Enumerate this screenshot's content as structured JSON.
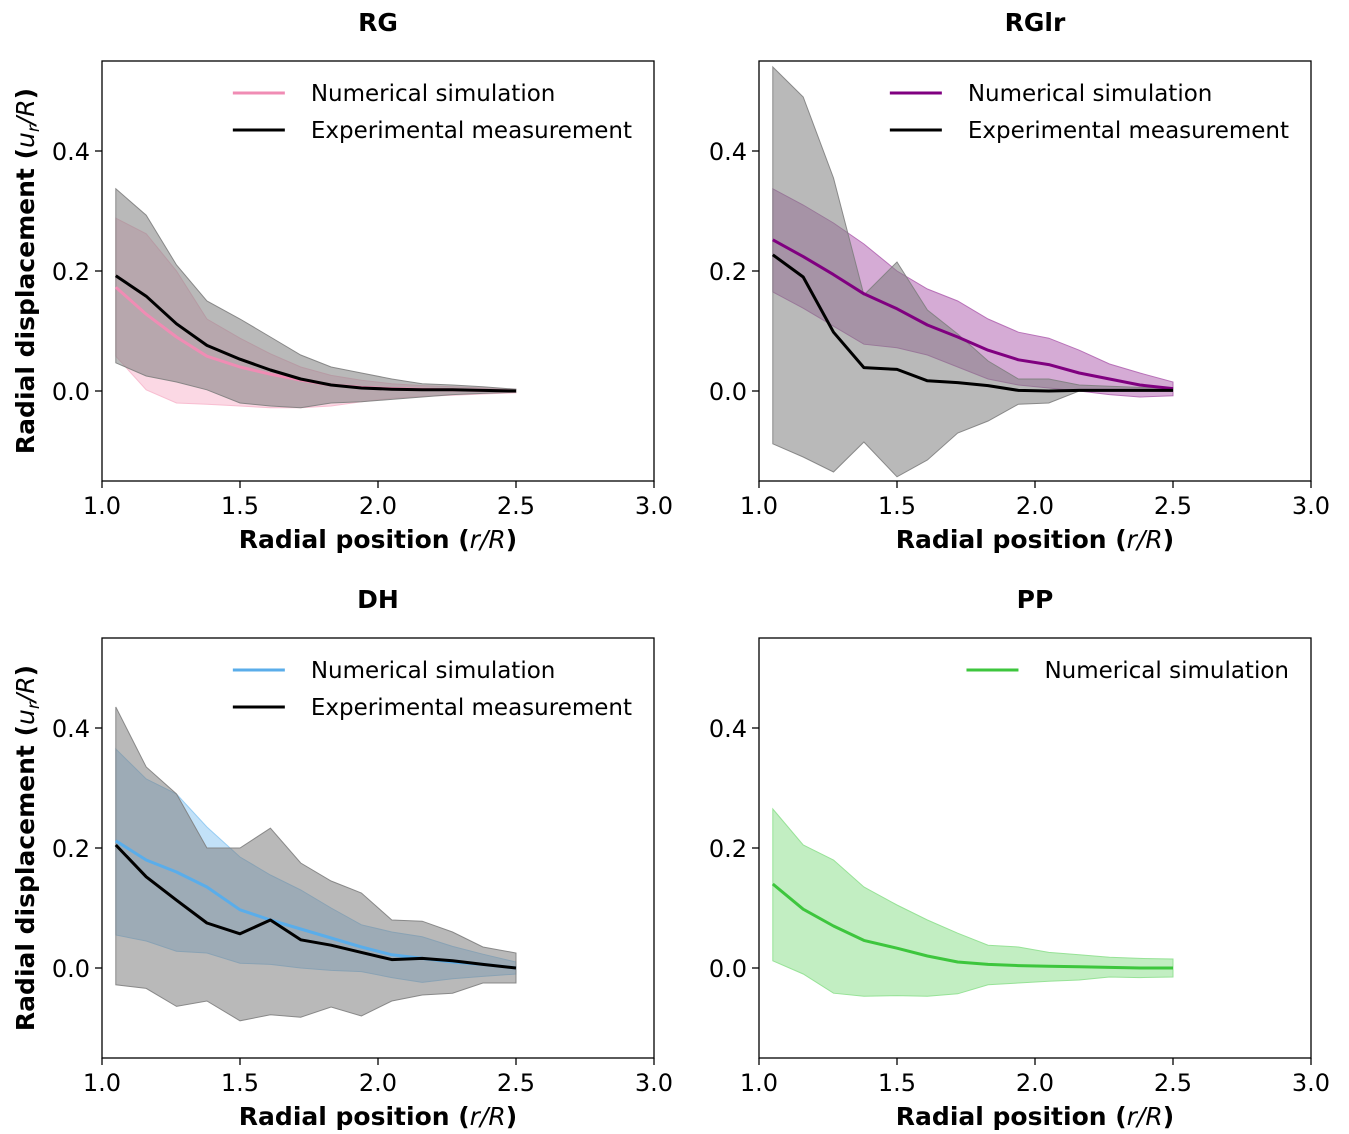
{
  "figure": {
    "x_label_prefix": "Radial position (",
    "x_label_var": "r/R",
    "x_label_suffix": ")",
    "y_label_prefix": "Radial displacement (",
    "y_label_var": "u",
    "y_label_sub": "r",
    "y_label_rest": "/R",
    "y_label_suffix": ")"
  },
  "chart_data": [
    {
      "type": "line",
      "title": "RG",
      "xlim": [
        1.0,
        3.0
      ],
      "ylim": [
        -0.15,
        0.55
      ],
      "x_ticks": [
        "1.0",
        "1.5",
        "2.0",
        "2.5",
        "3.0"
      ],
      "y_ticks": [
        "0.0",
        "0.2",
        "0.4"
      ],
      "legend_position": "top-right",
      "x": [
        1.05,
        1.16,
        1.27,
        1.38,
        1.5,
        1.61,
        1.72,
        1.83,
        1.94,
        2.05,
        2.16,
        2.27,
        2.38,
        2.5
      ],
      "series": [
        {
          "name": "Numerical simulation",
          "color": "#f08cb4",
          "band_color": "#f7b8cd",
          "values": [
            0.173,
            0.128,
            0.09,
            0.058,
            0.04,
            0.028,
            0.018,
            0.01,
            0.006,
            0.004,
            0.003,
            0.002,
            0.001,
            0.0
          ],
          "upper": [
            0.288,
            0.262,
            0.2,
            0.12,
            0.088,
            0.062,
            0.04,
            0.026,
            0.018,
            0.012,
            0.009,
            0.007,
            0.005,
            0.003
          ],
          "lower": [
            0.058,
            0.002,
            -0.02,
            -0.022,
            -0.025,
            -0.028,
            -0.028,
            -0.025,
            -0.018,
            -0.012,
            -0.009,
            -0.007,
            -0.005,
            -0.003
          ]
        },
        {
          "name": "Experimental measurement",
          "color": "#000000",
          "band_color": "#808080",
          "values": [
            0.192,
            0.158,
            0.112,
            0.076,
            0.053,
            0.035,
            0.02,
            0.01,
            0.005,
            0.003,
            0.002,
            0.002,
            0.001,
            0.0
          ],
          "upper": [
            0.337,
            0.293,
            0.21,
            0.15,
            0.12,
            0.09,
            0.06,
            0.04,
            0.03,
            0.02,
            0.012,
            0.01,
            0.007,
            0.003
          ],
          "lower": [
            0.047,
            0.025,
            0.015,
            0.002,
            -0.02,
            -0.025,
            -0.028,
            -0.02,
            -0.018,
            -0.014,
            -0.01,
            -0.006,
            -0.004,
            -0.002
          ]
        }
      ]
    },
    {
      "type": "line",
      "title": "RGlr",
      "xlim": [
        1.0,
        3.0
      ],
      "ylim": [
        -0.15,
        0.55
      ],
      "x_ticks": [
        "1.0",
        "1.5",
        "2.0",
        "2.5",
        "3.0"
      ],
      "y_ticks": [
        "0.0",
        "0.2",
        "0.4"
      ],
      "legend_position": "top-right",
      "x": [
        1.05,
        1.16,
        1.27,
        1.38,
        1.5,
        1.61,
        1.72,
        1.83,
        1.94,
        2.05,
        2.16,
        2.27,
        2.38,
        2.5
      ],
      "series": [
        {
          "name": "Numerical simulation",
          "color": "#800080",
          "band_color": "#b266b2",
          "values": [
            0.252,
            0.224,
            0.194,
            0.162,
            0.137,
            0.11,
            0.09,
            0.068,
            0.052,
            0.044,
            0.03,
            0.02,
            0.01,
            0.004
          ],
          "upper": [
            0.337,
            0.31,
            0.28,
            0.245,
            0.2,
            0.17,
            0.15,
            0.12,
            0.098,
            0.088,
            0.068,
            0.045,
            0.03,
            0.015
          ],
          "lower": [
            0.165,
            0.138,
            0.108,
            0.078,
            0.072,
            0.06,
            0.04,
            0.02,
            0.01,
            0.005,
            0.0,
            -0.006,
            -0.01,
            -0.008
          ]
        },
        {
          "name": "Experimental measurement",
          "color": "#000000",
          "band_color": "#808080",
          "values": [
            0.227,
            0.19,
            0.098,
            0.039,
            0.036,
            0.017,
            0.014,
            0.009,
            0.001,
            0.0,
            0.001,
            0.001,
            0.001,
            0.001
          ],
          "upper": [
            0.54,
            0.49,
            0.355,
            0.16,
            0.215,
            0.135,
            0.095,
            0.05,
            0.02,
            0.02,
            0.01,
            0.008,
            0.006,
            0.005
          ],
          "lower": [
            -0.088,
            -0.11,
            -0.135,
            -0.085,
            -0.143,
            -0.115,
            -0.07,
            -0.05,
            -0.022,
            -0.02,
            0.0,
            0.0,
            0.0,
            0.0
          ]
        }
      ]
    },
    {
      "type": "line",
      "title": "DH",
      "xlim": [
        1.0,
        3.0
      ],
      "ylim": [
        -0.15,
        0.55
      ],
      "x_ticks": [
        "1.0",
        "1.5",
        "2.0",
        "2.5",
        "3.0"
      ],
      "y_ticks": [
        "0.0",
        "0.2",
        "0.4"
      ],
      "legend_position": "top-right",
      "x": [
        1.05,
        1.16,
        1.27,
        1.38,
        1.5,
        1.61,
        1.72,
        1.83,
        1.94,
        2.05,
        2.16,
        2.27,
        2.38,
        2.5
      ],
      "series": [
        {
          "name": "Numerical simulation",
          "color": "#5aadea",
          "band_color": "#8fc9f2",
          "values": [
            0.212,
            0.18,
            0.16,
            0.135,
            0.097,
            0.08,
            0.065,
            0.05,
            0.035,
            0.022,
            0.016,
            0.01,
            0.006,
            0.0
          ],
          "upper": [
            0.365,
            0.315,
            0.29,
            0.235,
            0.185,
            0.155,
            0.13,
            0.1,
            0.072,
            0.06,
            0.052,
            0.036,
            0.023,
            0.01
          ],
          "lower": [
            0.055,
            0.045,
            0.028,
            0.025,
            0.008,
            0.006,
            0.0,
            -0.004,
            -0.006,
            -0.016,
            -0.024,
            -0.018,
            -0.014,
            -0.01
          ]
        },
        {
          "name": "Experimental measurement",
          "color": "#000000",
          "band_color": "#808080",
          "values": [
            0.205,
            0.152,
            0.113,
            0.075,
            0.057,
            0.08,
            0.047,
            0.038,
            0.026,
            0.014,
            0.016,
            0.012,
            0.006,
            0.0
          ],
          "upper": [
            0.435,
            0.335,
            0.29,
            0.2,
            0.2,
            0.233,
            0.175,
            0.145,
            0.125,
            0.08,
            0.078,
            0.06,
            0.035,
            0.025
          ],
          "lower": [
            -0.028,
            -0.034,
            -0.064,
            -0.055,
            -0.088,
            -0.078,
            -0.082,
            -0.065,
            -0.08,
            -0.055,
            -0.045,
            -0.042,
            -0.025,
            -0.025
          ]
        }
      ]
    },
    {
      "type": "line",
      "title": "PP",
      "xlim": [
        1.0,
        3.0
      ],
      "ylim": [
        -0.15,
        0.55
      ],
      "x_ticks": [
        "1.0",
        "1.5",
        "2.0",
        "2.5",
        "3.0"
      ],
      "y_ticks": [
        "0.0",
        "0.2",
        "0.4"
      ],
      "legend_position": "top-right",
      "x": [
        1.05,
        1.16,
        1.27,
        1.38,
        1.5,
        1.61,
        1.72,
        1.83,
        1.94,
        2.05,
        2.16,
        2.27,
        2.38,
        2.5
      ],
      "series": [
        {
          "name": "Numerical simulation",
          "color": "#3dc63d",
          "band_color": "#8fe08f",
          "values": [
            0.14,
            0.098,
            0.07,
            0.046,
            0.033,
            0.02,
            0.01,
            0.006,
            0.004,
            0.003,
            0.002,
            0.001,
            0.0,
            0.0
          ],
          "upper": [
            0.265,
            0.205,
            0.18,
            0.135,
            0.105,
            0.08,
            0.058,
            0.038,
            0.035,
            0.026,
            0.022,
            0.018,
            0.016,
            0.015
          ],
          "lower": [
            0.012,
            -0.01,
            -0.042,
            -0.047,
            -0.046,
            -0.047,
            -0.043,
            -0.028,
            -0.025,
            -0.022,
            -0.02,
            -0.015,
            -0.016,
            -0.015
          ]
        }
      ]
    }
  ]
}
